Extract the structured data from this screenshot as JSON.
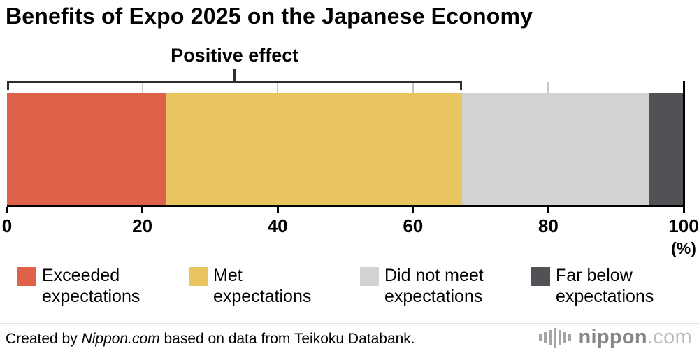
{
  "chart_data": {
    "type": "bar",
    "stacked": true,
    "orientation": "horizontal",
    "title": "Benefits of Expo 2025 on the Japanese Economy",
    "annotation": {
      "label": "Positive effect",
      "span_pct": [
        0,
        67.3
      ]
    },
    "series": [
      {
        "name": "Exceeded expectations",
        "value": 23.4,
        "color": "#e0614a"
      },
      {
        "name": "Met expectations",
        "value": 43.9,
        "color": "#e9c55f"
      },
      {
        "name": "Did not meet expectations",
        "value": 27.5,
        "color": "#d2d2d2"
      },
      {
        "name": "Far below expectations",
        "value": 5.2,
        "color": "#515156"
      }
    ],
    "xlim": [
      0,
      100
    ],
    "x_ticks": [
      0,
      20,
      40,
      60,
      80,
      100
    ],
    "gridlines": [
      20,
      40,
      60,
      80
    ],
    "x_unit": "(%)",
    "legend_position": "bottom",
    "grid": true
  },
  "legend": {
    "items": [
      {
        "line1": "Exceeded",
        "line2": "expectations",
        "color": "#e0614a"
      },
      {
        "line1": "Met",
        "line2": "expectations",
        "color": "#e9c55f"
      },
      {
        "line1": "Did not meet",
        "line2": "expectations",
        "color": "#d2d2d2"
      },
      {
        "line1": "Far below",
        "line2": "expectations",
        "color": "#515156"
      }
    ]
  },
  "footer": {
    "credit_prefix": "Created by ",
    "credit_source": "Nippon.com",
    "credit_suffix": " based on data from Teikoku Databank.",
    "logo_text": "nippon",
    "logo_suffix": ".com"
  }
}
